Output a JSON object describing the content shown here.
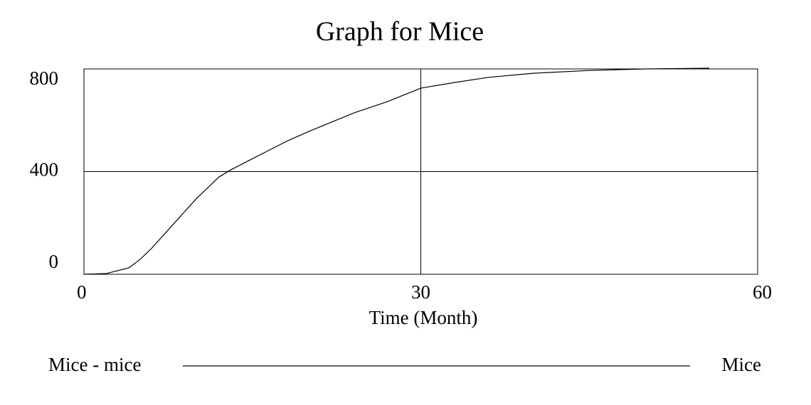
{
  "chart_data": {
    "type": "line",
    "title": "Graph for Mice",
    "x_label": "Time (Month)",
    "x": [
      0,
      2,
      4,
      5,
      6,
      8,
      10,
      12,
      13,
      15,
      18,
      20,
      24,
      27,
      30,
      33,
      36,
      40,
      45,
      50,
      55.7
    ],
    "series": [
      {
        "name": "Mice - mice",
        "color": "#000000",
        "values": [
          0,
          3,
          25,
          58,
          100,
          197,
          294,
          378,
          405,
          450,
          517,
          556,
          628,
          672,
          725,
          747,
          767,
          783,
          794,
          800,
          803
        ]
      }
    ],
    "units": "Mice",
    "xlim": [
      0,
      60
    ],
    "xticks": [
      0,
      30,
      60
    ],
    "ylim": [
      0,
      800
    ],
    "yticks": [
      0,
      400,
      800
    ],
    "grid": true
  }
}
